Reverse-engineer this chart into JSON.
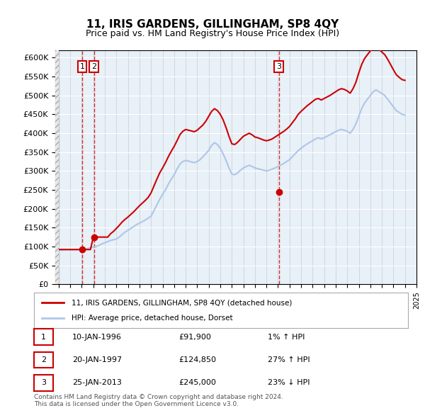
{
  "title": "11, IRIS GARDENS, GILLINGHAM, SP8 4QY",
  "subtitle": "Price paid vs. HM Land Registry's House Price Index (HPI)",
  "ylabel": "",
  "ylim": [
    0,
    620000
  ],
  "yticks": [
    0,
    50000,
    100000,
    150000,
    200000,
    250000,
    300000,
    350000,
    400000,
    450000,
    500000,
    550000,
    600000
  ],
  "ytick_labels": [
    "£0",
    "£50K",
    "£100K",
    "£150K",
    "£200K",
    "£250K",
    "£300K",
    "£350K",
    "£400K",
    "£450K",
    "£500K",
    "£550K",
    "£600K"
  ],
  "hpi_color": "#aec6e8",
  "price_color": "#cc0000",
  "sale_marker_color": "#cc0000",
  "annotation_box_color": "#cc0000",
  "vline_color": "#cc0000",
  "background_hatch_color": "#d0d0d0",
  "plot_bg_color": "#e8f0f8",
  "legend_line1": "11, IRIS GARDENS, GILLINGHAM, SP8 4QY (detached house)",
  "legend_line2": "HPI: Average price, detached house, Dorset",
  "table_rows": [
    {
      "num": "1",
      "date": "10-JAN-1996",
      "price": "£91,900",
      "change": "1% ↑ HPI"
    },
    {
      "num": "2",
      "date": "20-JAN-1997",
      "price": "£124,850",
      "change": "27% ↑ HPI"
    },
    {
      "num": "3",
      "date": "25-JAN-2013",
      "price": "£245,000",
      "change": "23% ↓ HPI"
    }
  ],
  "footer": "Contains HM Land Registry data © Crown copyright and database right 2024.\nThis data is licensed under the Open Government Licence v3.0.",
  "sales": [
    {
      "year": 1996.04,
      "price": 91900,
      "label": "1"
    },
    {
      "year": 1997.06,
      "price": 124850,
      "label": "2"
    },
    {
      "year": 2013.07,
      "price": 245000,
      "label": "3"
    }
  ],
  "hpi_data": {
    "years": [
      1994.0,
      1994.25,
      1994.5,
      1994.75,
      1995.0,
      1995.25,
      1995.5,
      1995.75,
      1996.0,
      1996.25,
      1996.5,
      1996.75,
      1997.0,
      1997.25,
      1997.5,
      1997.75,
      1998.0,
      1998.25,
      1998.5,
      1998.75,
      1999.0,
      1999.25,
      1999.5,
      1999.75,
      2000.0,
      2000.25,
      2000.5,
      2000.75,
      2001.0,
      2001.25,
      2001.5,
      2001.75,
      2002.0,
      2002.25,
      2002.5,
      2002.75,
      2003.0,
      2003.25,
      2003.5,
      2003.75,
      2004.0,
      2004.25,
      2004.5,
      2004.75,
      2005.0,
      2005.25,
      2005.5,
      2005.75,
      2006.0,
      2006.25,
      2006.5,
      2006.75,
      2007.0,
      2007.25,
      2007.5,
      2007.75,
      2008.0,
      2008.25,
      2008.5,
      2008.75,
      2009.0,
      2009.25,
      2009.5,
      2009.75,
      2010.0,
      2010.25,
      2010.5,
      2010.75,
      2011.0,
      2011.25,
      2011.5,
      2011.75,
      2012.0,
      2012.25,
      2012.5,
      2012.75,
      2013.0,
      2013.25,
      2013.5,
      2013.75,
      2014.0,
      2014.25,
      2014.5,
      2014.75,
      2015.0,
      2015.25,
      2015.5,
      2015.75,
      2016.0,
      2016.25,
      2016.5,
      2016.75,
      2017.0,
      2017.25,
      2017.5,
      2017.75,
      2018.0,
      2018.25,
      2018.5,
      2018.75,
      2019.0,
      2019.25,
      2019.5,
      2019.75,
      2020.0,
      2020.25,
      2020.5,
      2020.75,
      2021.0,
      2021.25,
      2021.5,
      2021.75,
      2022.0,
      2022.25,
      2022.5,
      2022.75,
      2023.0,
      2023.25,
      2023.5,
      2023.75,
      2024.0
    ],
    "values": [
      90000,
      90500,
      91000,
      91500,
      91000,
      91200,
      91500,
      92000,
      92000,
      93000,
      95000,
      97000,
      98000,
      100000,
      103000,
      107000,
      110000,
      113000,
      116000,
      118000,
      120000,
      125000,
      132000,
      138000,
      143000,
      148000,
      153000,
      158000,
      162000,
      166000,
      170000,
      175000,
      180000,
      195000,
      210000,
      225000,
      238000,
      250000,
      265000,
      278000,
      290000,
      305000,
      318000,
      325000,
      328000,
      326000,
      324000,
      322000,
      325000,
      330000,
      338000,
      346000,
      355000,
      368000,
      375000,
      370000,
      360000,
      345000,
      328000,
      308000,
      292000,
      290000,
      295000,
      302000,
      308000,
      312000,
      315000,
      312000,
      308000,
      306000,
      304000,
      302000,
      300000,
      302000,
      305000,
      308000,
      312000,
      316000,
      320000,
      325000,
      330000,
      338000,
      346000,
      354000,
      360000,
      366000,
      371000,
      376000,
      380000,
      385000,
      388000,
      385000,
      388000,
      392000,
      396000,
      400000,
      404000,
      408000,
      410000,
      408000,
      405000,
      400000,
      410000,
      425000,
      445000,
      465000,
      480000,
      490000,
      500000,
      510000,
      515000,
      510000,
      505000,
      500000,
      490000,
      480000,
      470000,
      460000,
      455000,
      450000,
      448000
    ]
  },
  "price_paid_data": {
    "years": [
      1994.0,
      1994.25,
      1994.5,
      1994.75,
      1995.0,
      1995.25,
      1995.5,
      1995.75,
      1996.0,
      1996.25,
      1996.5,
      1996.75,
      1997.0,
      1997.25,
      1997.5,
      1997.75,
      1998.0,
      1998.25,
      1998.5,
      1998.75,
      1999.0,
      1999.25,
      1999.5,
      1999.75,
      2000.0,
      2000.25,
      2000.5,
      2000.75,
      2001.0,
      2001.25,
      2001.5,
      2001.75,
      2002.0,
      2002.25,
      2002.5,
      2002.75,
      2003.0,
      2003.25,
      2003.5,
      2003.75,
      2004.0,
      2004.25,
      2004.5,
      2004.75,
      2005.0,
      2005.25,
      2005.5,
      2005.75,
      2006.0,
      2006.25,
      2006.5,
      2006.75,
      2007.0,
      2007.25,
      2007.5,
      2007.75,
      2008.0,
      2008.25,
      2008.5,
      2008.75,
      2009.0,
      2009.25,
      2009.5,
      2009.75,
      2010.0,
      2010.25,
      2010.5,
      2010.75,
      2011.0,
      2011.25,
      2011.5,
      2011.75,
      2012.0,
      2012.25,
      2012.5,
      2012.75,
      2013.0,
      2013.25,
      2013.5,
      2013.75,
      2014.0,
      2014.25,
      2014.5,
      2014.75,
      2015.0,
      2015.25,
      2015.5,
      2015.75,
      2016.0,
      2016.25,
      2016.5,
      2016.75,
      2017.0,
      2017.25,
      2017.5,
      2017.75,
      2018.0,
      2018.25,
      2018.5,
      2018.75,
      2019.0,
      2019.25,
      2019.5,
      2019.75,
      2020.0,
      2020.25,
      2020.5,
      2020.75,
      2021.0,
      2021.25,
      2021.5,
      2021.75,
      2022.0,
      2022.25,
      2022.5,
      2022.75,
      2023.0,
      2023.25,
      2023.5,
      2023.75,
      2024.0
    ],
    "values": [
      91900,
      91900,
      91900,
      91900,
      91900,
      91900,
      91900,
      91900,
      91900,
      91900,
      91900,
      91900,
      124850,
      124850,
      124850,
      124850,
      124850,
      124850,
      134000,
      140000,
      148000,
      156000,
      165000,
      172000,
      178000,
      185000,
      192000,
      200000,
      208000,
      215000,
      222000,
      230000,
      242000,
      260000,
      278000,
      295000,
      308000,
      322000,
      338000,
      352000,
      365000,
      380000,
      396000,
      405000,
      410000,
      408000,
      406000,
      404000,
      408000,
      415000,
      422000,
      432000,
      445000,
      458000,
      465000,
      460000,
      450000,
      435000,
      415000,
      392000,
      372000,
      370000,
      376000,
      384000,
      392000,
      396000,
      400000,
      396000,
      390000,
      388000,
      385000,
      382000,
      380000,
      382000,
      385000,
      390000,
      395000,
      400000,
      405000,
      411000,
      418000,
      428000,
      438000,
      450000,
      458000,
      465000,
      472000,
      478000,
      484000,
      490000,
      492000,
      488000,
      492000,
      496000,
      500000,
      505000,
      510000,
      515000,
      518000,
      516000,
      512000,
      506000,
      518000,
      535000,
      560000,
      582000,
      598000,
      608000,
      618000,
      625000,
      628000,
      622000,
      615000,
      608000,
      596000,
      582000,
      568000,
      555000,
      548000,
      542000,
      540000
    ]
  }
}
